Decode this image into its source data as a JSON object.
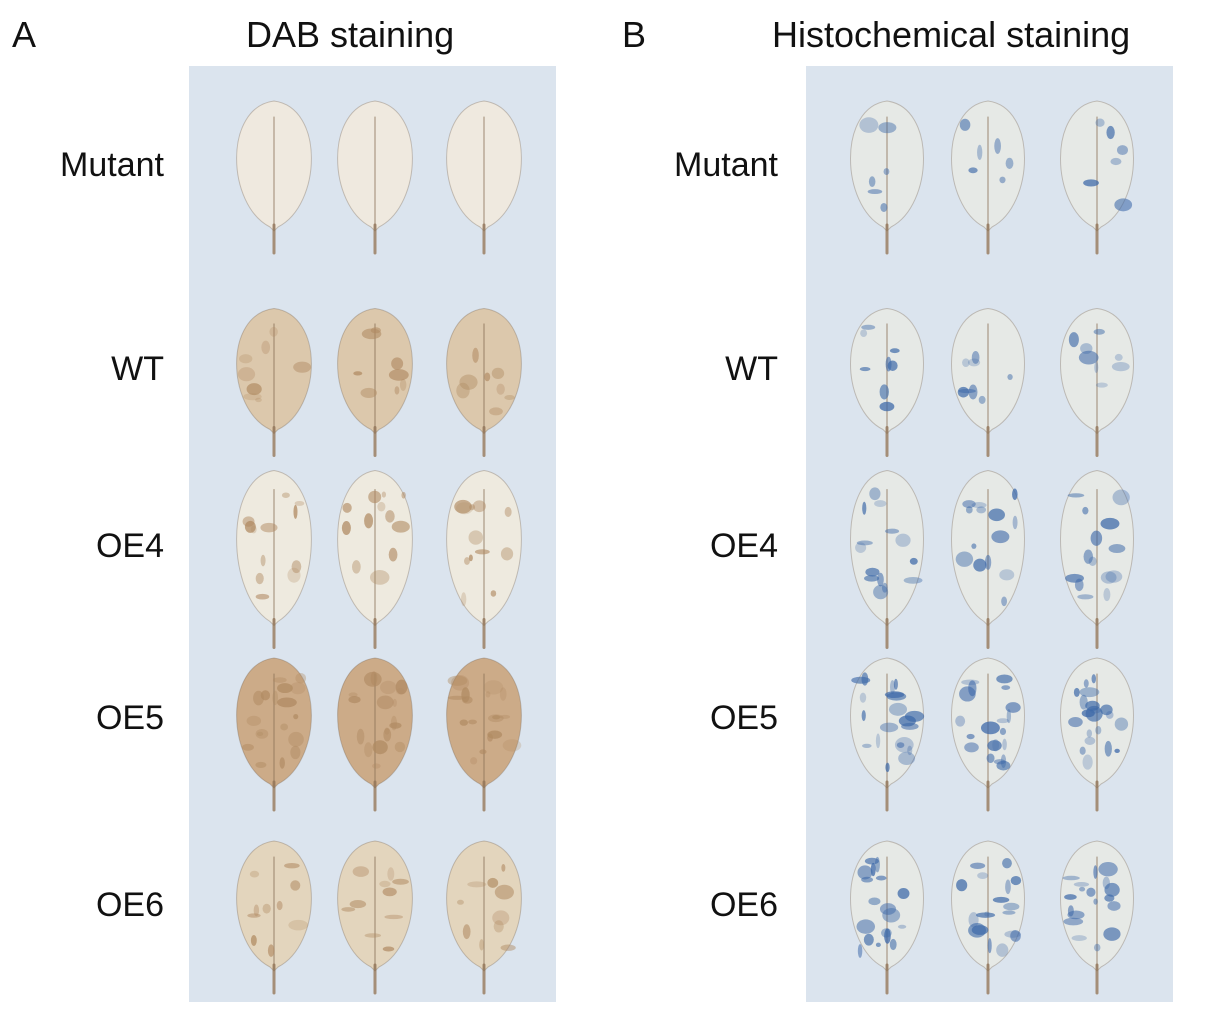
{
  "panels": [
    {
      "letter": "A",
      "title": "DAB staining",
      "stain": "brown",
      "rows": [
        "Mutant",
        "WT",
        "OE4",
        "OE5",
        "OE6"
      ]
    },
    {
      "letter": "B",
      "title": "Histochemical staining",
      "stain": "blue",
      "rows": [
        "Mutant",
        "WT",
        "OE4",
        "OE5",
        "OE6"
      ]
    }
  ],
  "colors": {
    "background": "#dbe4ee",
    "leaf_pale": "#ece6d8",
    "dab_brown": "#b08a62",
    "histo_blue": "#3c68a8"
  }
}
